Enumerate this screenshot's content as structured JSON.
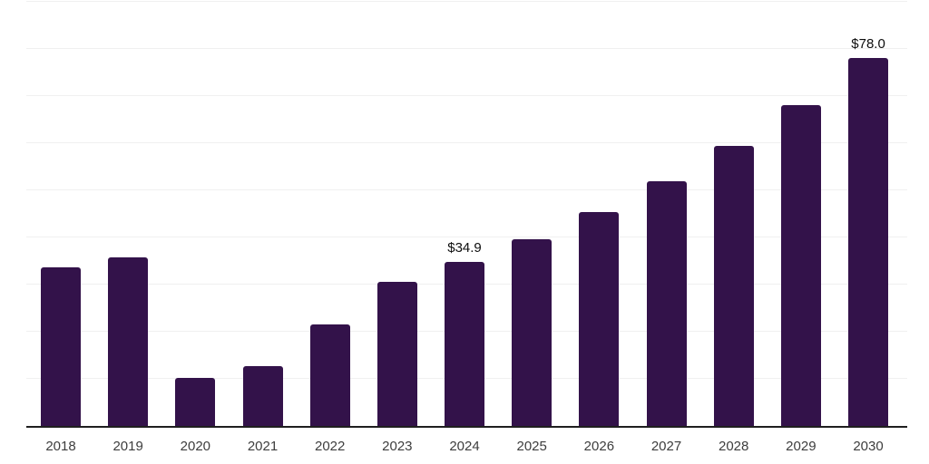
{
  "chart_data": {
    "type": "bar",
    "title": "",
    "xlabel": "",
    "ylabel": "",
    "categories": [
      "2018",
      "2019",
      "2020",
      "2021",
      "2022",
      "2023",
      "2024",
      "2025",
      "2026",
      "2027",
      "2028",
      "2029",
      "2030"
    ],
    "values": [
      33.7,
      35.7,
      10.2,
      12.7,
      21.6,
      30.5,
      34.9,
      39.7,
      45.4,
      52.0,
      59.5,
      68.1,
      78.0
    ],
    "data_labels": [
      {
        "category": "2024",
        "text": "$34.9"
      },
      {
        "category": "2030",
        "text": "$78.0"
      }
    ],
    "ylim": [
      0,
      90
    ],
    "ytick_step": 10,
    "grid": "horizontal",
    "yticks_shown": false,
    "legend": "none"
  },
  "style": {
    "bar_color": "#33124a",
    "grid_color": "#f0f0f0",
    "axis_color": "#1f1f1f",
    "tick_label_color": "#3d3d3d",
    "data_label_color": "#0d0d0d",
    "background": "#ffffff"
  }
}
